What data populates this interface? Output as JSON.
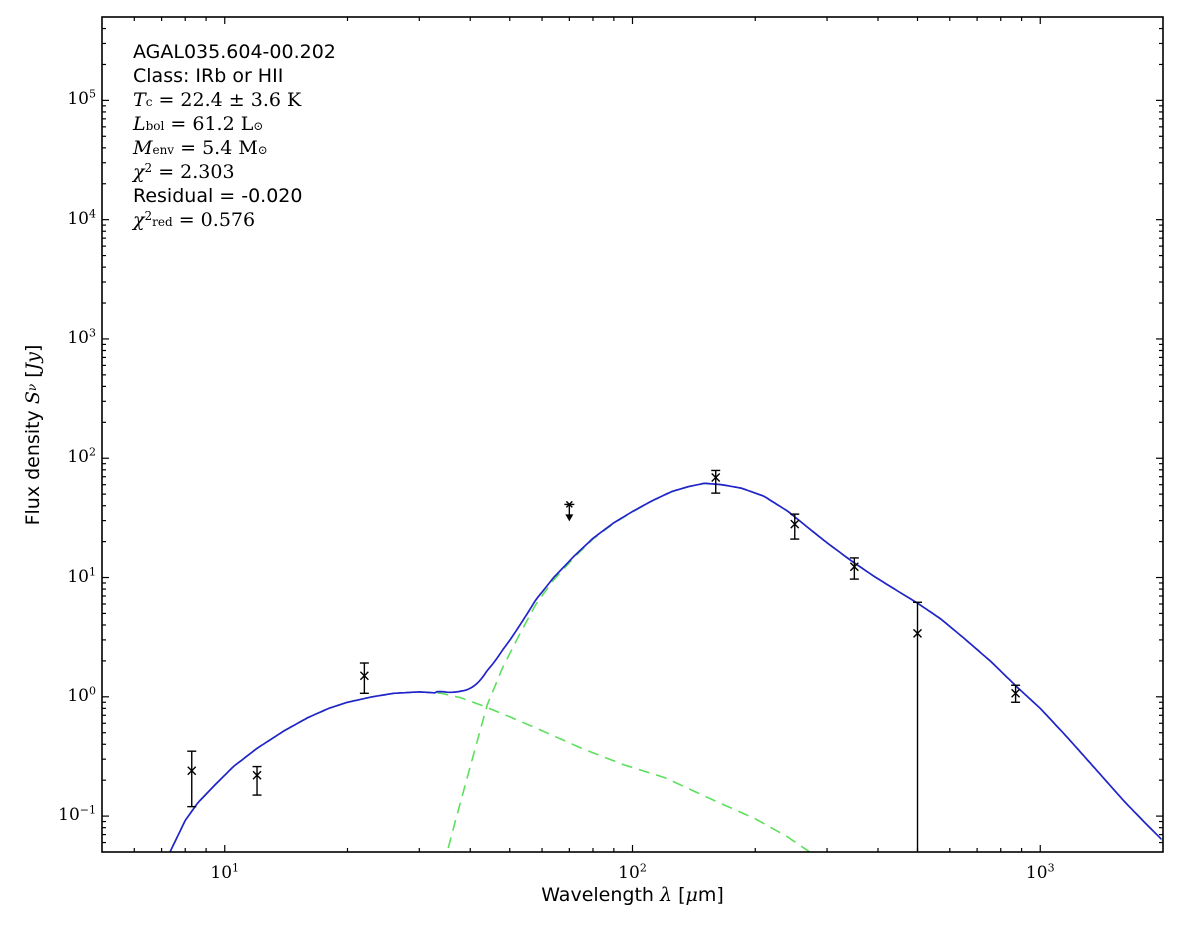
{
  "figure": {
    "background": "#ffffff",
    "annotation": {
      "lines": [
        [
          {
            "s": "rm",
            "t": "AGAL035.604-00.202"
          }
        ],
        [
          {
            "s": "rm",
            "t": "Class: IRb or HII"
          }
        ],
        [
          {
            "s": "mit",
            "t": "T"
          },
          {
            "s": "sub",
            "t": "c"
          },
          {
            "s": "mrm",
            "t": " = 22.4 ± 3.6 K"
          }
        ],
        [
          {
            "s": "mit",
            "t": "L"
          },
          {
            "s": "sub",
            "t": "bol"
          },
          {
            "s": "mrm",
            "t": " = 61.2 L"
          },
          {
            "s": "sub",
            "t": "⊙"
          }
        ],
        [
          {
            "s": "mit",
            "t": "M"
          },
          {
            "s": "sub",
            "t": "env"
          },
          {
            "s": "mrm",
            "t": " = 5.4 M"
          },
          {
            "s": "sub",
            "t": "⊙"
          }
        ],
        [
          {
            "s": "mit",
            "t": "χ"
          },
          {
            "s": "sup",
            "t": "2"
          },
          {
            "s": "mrm",
            "t": " = 2.303"
          }
        ],
        [
          {
            "s": "rm",
            "t": "Residual = -0.020"
          }
        ],
        [
          {
            "s": "mit",
            "t": "χ"
          },
          {
            "s": "sup",
            "t": "2"
          },
          {
            "s": "sub",
            "t": "red"
          },
          {
            "s": "mrm",
            "t": " = 0.576"
          }
        ]
      ]
    }
  },
  "chart_data": {
    "type": "line",
    "title": "",
    "xlabel": "Wavelength λ [μm]",
    "ylabel": "Flux density S_ν [Jy]",
    "xlabel_parts": [
      {
        "s": "rm",
        "t": "Wavelength "
      },
      {
        "s": "mit",
        "t": "λ"
      },
      {
        "s": "rm",
        "t": " ["
      },
      {
        "s": "mit",
        "t": "μ"
      },
      {
        "s": "rm",
        "t": "m]"
      }
    ],
    "ylabel_parts": [
      {
        "s": "rm",
        "t": "Flux density "
      },
      {
        "s": "mit",
        "t": "S"
      },
      {
        "s": "subit",
        "t": "ν"
      },
      {
        "s": "rm",
        "t": " ["
      },
      {
        "s": "mit",
        "t": "Jy"
      },
      {
        "s": "rm",
        "t": "]"
      }
    ],
    "xscale": "log",
    "yscale": "log",
    "xlim": [
      5,
      2000
    ],
    "ylim": [
      0.05,
      500000
    ],
    "grid": false,
    "legend": "none",
    "x_ticks": [
      {
        "e": 1,
        "l": "1"
      },
      {
        "e": 2,
        "l": "2"
      },
      {
        "e": 3,
        "l": "3"
      }
    ],
    "y_ticks": [
      {
        "e": 5,
        "l": "5"
      },
      {
        "e": 4,
        "l": "4"
      },
      {
        "e": 3,
        "l": "3"
      },
      {
        "e": 2,
        "l": "2"
      },
      {
        "e": 1,
        "l": "1"
      },
      {
        "e": 0,
        "l": "0"
      },
      {
        "e": -1,
        "l": "−1"
      }
    ],
    "colors": {
      "model_total": "#2323cc",
      "components": "#5ce05c",
      "data": "#000000"
    },
    "series": [
      {
        "name": "warm-component",
        "role": "component",
        "color": "#5ce05c",
        "style": "dashed",
        "points": [
          [
            6.8,
            0.03
          ],
          [
            7.3,
            0.048
          ],
          [
            8.0,
            0.092
          ],
          [
            8.6,
            0.13
          ],
          [
            9.5,
            0.185
          ],
          [
            10.5,
            0.26
          ],
          [
            12,
            0.37
          ],
          [
            14,
            0.52
          ],
          [
            16,
            0.67
          ],
          [
            18,
            0.8
          ],
          [
            20,
            0.9
          ],
          [
            23,
            1.0
          ],
          [
            26,
            1.07
          ],
          [
            30,
            1.1
          ],
          [
            34,
            1.07
          ],
          [
            38,
            0.98
          ],
          [
            43,
            0.84
          ],
          [
            50,
            0.68
          ],
          [
            60,
            0.52
          ],
          [
            75,
            0.37
          ],
          [
            95,
            0.27
          ],
          [
            120,
            0.21
          ],
          [
            155,
            0.14
          ],
          [
            200,
            0.095
          ],
          [
            240,
            0.067
          ],
          [
            272,
            0.05
          ],
          [
            300,
            0.04
          ],
          [
            340,
            0.03
          ]
        ]
      },
      {
        "name": "cold-component",
        "role": "component",
        "color": "#5ce05c",
        "style": "dashed",
        "points": [
          [
            33,
            0.028
          ],
          [
            35,
            0.048
          ],
          [
            37,
            0.098
          ],
          [
            40,
            0.26
          ],
          [
            44,
            0.85
          ],
          [
            48,
            1.75
          ],
          [
            53,
            3.4
          ],
          [
            58,
            6.0
          ],
          [
            64,
            9.5
          ],
          [
            72,
            14.8
          ],
          [
            80,
            21
          ],
          [
            90,
            28.5
          ],
          [
            100,
            35.5
          ],
          [
            112,
            44
          ],
          [
            125,
            52.5
          ],
          [
            138,
            58
          ],
          [
            150,
            61.5
          ],
          [
            165,
            60
          ],
          [
            185,
            56
          ],
          [
            210,
            48
          ],
          [
            240,
            36
          ],
          [
            270,
            26
          ],
          [
            300,
            19.5
          ],
          [
            340,
            14.2
          ],
          [
            390,
            10.3
          ],
          [
            450,
            7.6
          ],
          [
            500,
            6.1
          ],
          [
            570,
            4.5
          ],
          [
            650,
            3.1
          ],
          [
            760,
            1.95
          ],
          [
            870,
            1.24
          ],
          [
            1000,
            0.8
          ],
          [
            1150,
            0.48
          ],
          [
            1350,
            0.26
          ],
          [
            1600,
            0.135
          ],
          [
            1800,
            0.089
          ],
          [
            2000,
            0.062
          ]
        ]
      },
      {
        "name": "model-total",
        "role": "sum-of-components",
        "color": "#2323cc",
        "style": "solid"
      }
    ],
    "data_points": [
      {
        "wavelength_um": 8.3,
        "flux_jy": 0.24,
        "flux_lo": 0.12,
        "flux_hi": 0.35
      },
      {
        "wavelength_um": 12,
        "flux_jy": 0.22,
        "flux_lo": 0.15,
        "flux_hi": 0.26
      },
      {
        "wavelength_um": 22,
        "flux_jy": 1.5,
        "flux_lo": 1.07,
        "flux_hi": 1.92
      },
      {
        "wavelength_um": 160,
        "flux_jy": 69,
        "flux_lo": 51,
        "flux_hi": 79
      },
      {
        "wavelength_um": 250,
        "flux_jy": 28,
        "flux_lo": 21,
        "flux_hi": 34
      },
      {
        "wavelength_um": 350,
        "flux_jy": 12.3,
        "flux_lo": 9.7,
        "flux_hi": 14.6
      },
      {
        "wavelength_um": 500,
        "flux_jy": 3.4,
        "flux_lo": null,
        "flux_hi": 6.2
      },
      {
        "wavelength_um": 870,
        "flux_jy": 1.07,
        "flux_lo": 0.9,
        "flux_hi": 1.25
      }
    ],
    "upper_limits": [
      {
        "wavelength_um": 70,
        "flux_jy": 41
      }
    ]
  }
}
